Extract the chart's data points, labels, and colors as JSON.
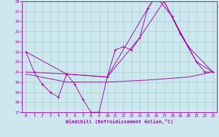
{
  "xlabel": "Windchill (Refroidissement éolien,°C)",
  "xlim": [
    -0.5,
    23.5
  ],
  "ylim": [
    17,
    28
  ],
  "xticks": [
    0,
    1,
    2,
    3,
    4,
    5,
    6,
    7,
    8,
    9,
    10,
    11,
    12,
    13,
    14,
    15,
    16,
    17,
    18,
    19,
    20,
    21,
    22,
    23
  ],
  "yticks": [
    17,
    18,
    19,
    20,
    21,
    22,
    23,
    24,
    25,
    26,
    27,
    28
  ],
  "bg_color": "#cce8ee",
  "grid_color": "#aacccc",
  "line_color": "#aa00aa",
  "lines": [
    {
      "x": [
        0,
        1,
        2,
        3,
        4,
        5,
        6,
        7,
        8,
        9,
        10,
        11,
        12,
        13,
        14,
        15,
        16,
        17,
        18,
        19,
        20,
        21,
        22,
        23
      ],
      "y": [
        23,
        21,
        19.8,
        19.0,
        18.5,
        20.8,
        19.8,
        18.3,
        17.0,
        17.0,
        20.5,
        23.2,
        23.5,
        23.2,
        24.4,
        27.3,
        28.5,
        28.0,
        26.5,
        24.8,
        23.5,
        22.0,
        21.0,
        21.0
      ],
      "marker": true
    },
    {
      "x": [
        0,
        5,
        10,
        15,
        16,
        18,
        20,
        23
      ],
      "y": [
        23,
        20.8,
        20.5,
        27.3,
        28.5,
        26.5,
        23.5,
        21.0
      ],
      "marker": false
    },
    {
      "x": [
        0,
        5,
        10,
        14,
        17,
        19,
        21,
        23
      ],
      "y": [
        21.0,
        20.8,
        20.5,
        24.4,
        28.0,
        24.8,
        22.0,
        21.0
      ],
      "marker": false
    },
    {
      "x": [
        0,
        5,
        10,
        15,
        20,
        23
      ],
      "y": [
        20.8,
        20.0,
        20.0,
        20.2,
        20.5,
        21.0
      ],
      "marker": false
    }
  ]
}
